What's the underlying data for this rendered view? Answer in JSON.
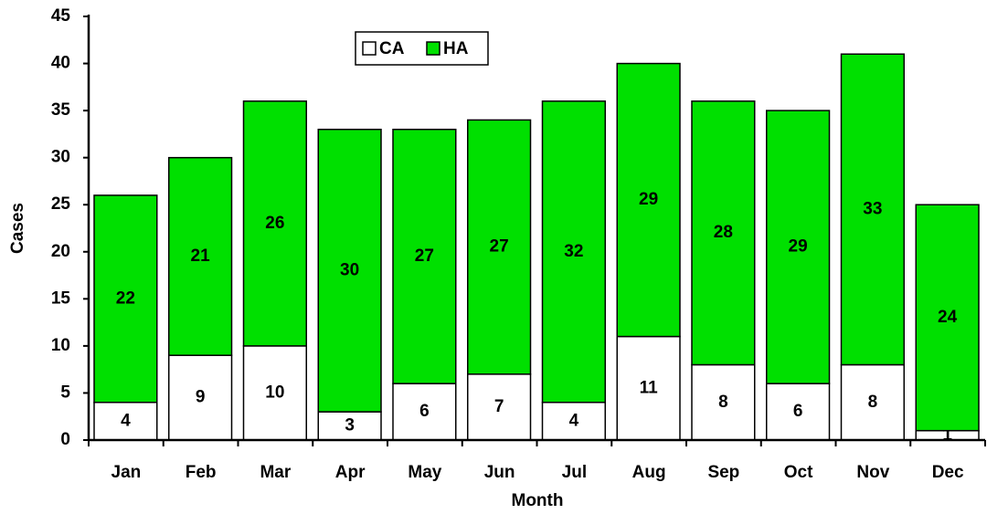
{
  "chart_data": {
    "type": "stacked_bar",
    "xlabel": "Month",
    "ylabel": "Cases",
    "categories": [
      "Jan",
      "Feb",
      "Mar",
      "Apr",
      "May",
      "Jun",
      "Jul",
      "Aug",
      "Sep",
      "Oct",
      "Nov",
      "Dec"
    ],
    "series": [
      {
        "name": "CA",
        "color": "#ffffff",
        "values": [
          4,
          9,
          10,
          3,
          6,
          7,
          4,
          11,
          8,
          6,
          8,
          1
        ]
      },
      {
        "name": "HA",
        "color": "#00e000",
        "values": [
          22,
          21,
          26,
          30,
          27,
          27,
          32,
          29,
          28,
          29,
          33,
          24
        ]
      }
    ],
    "ylim": [
      0,
      45
    ],
    "yticks": [
      0,
      5,
      10,
      15,
      20,
      25,
      30,
      35,
      40,
      45
    ],
    "grid": false,
    "legend": "top"
  }
}
